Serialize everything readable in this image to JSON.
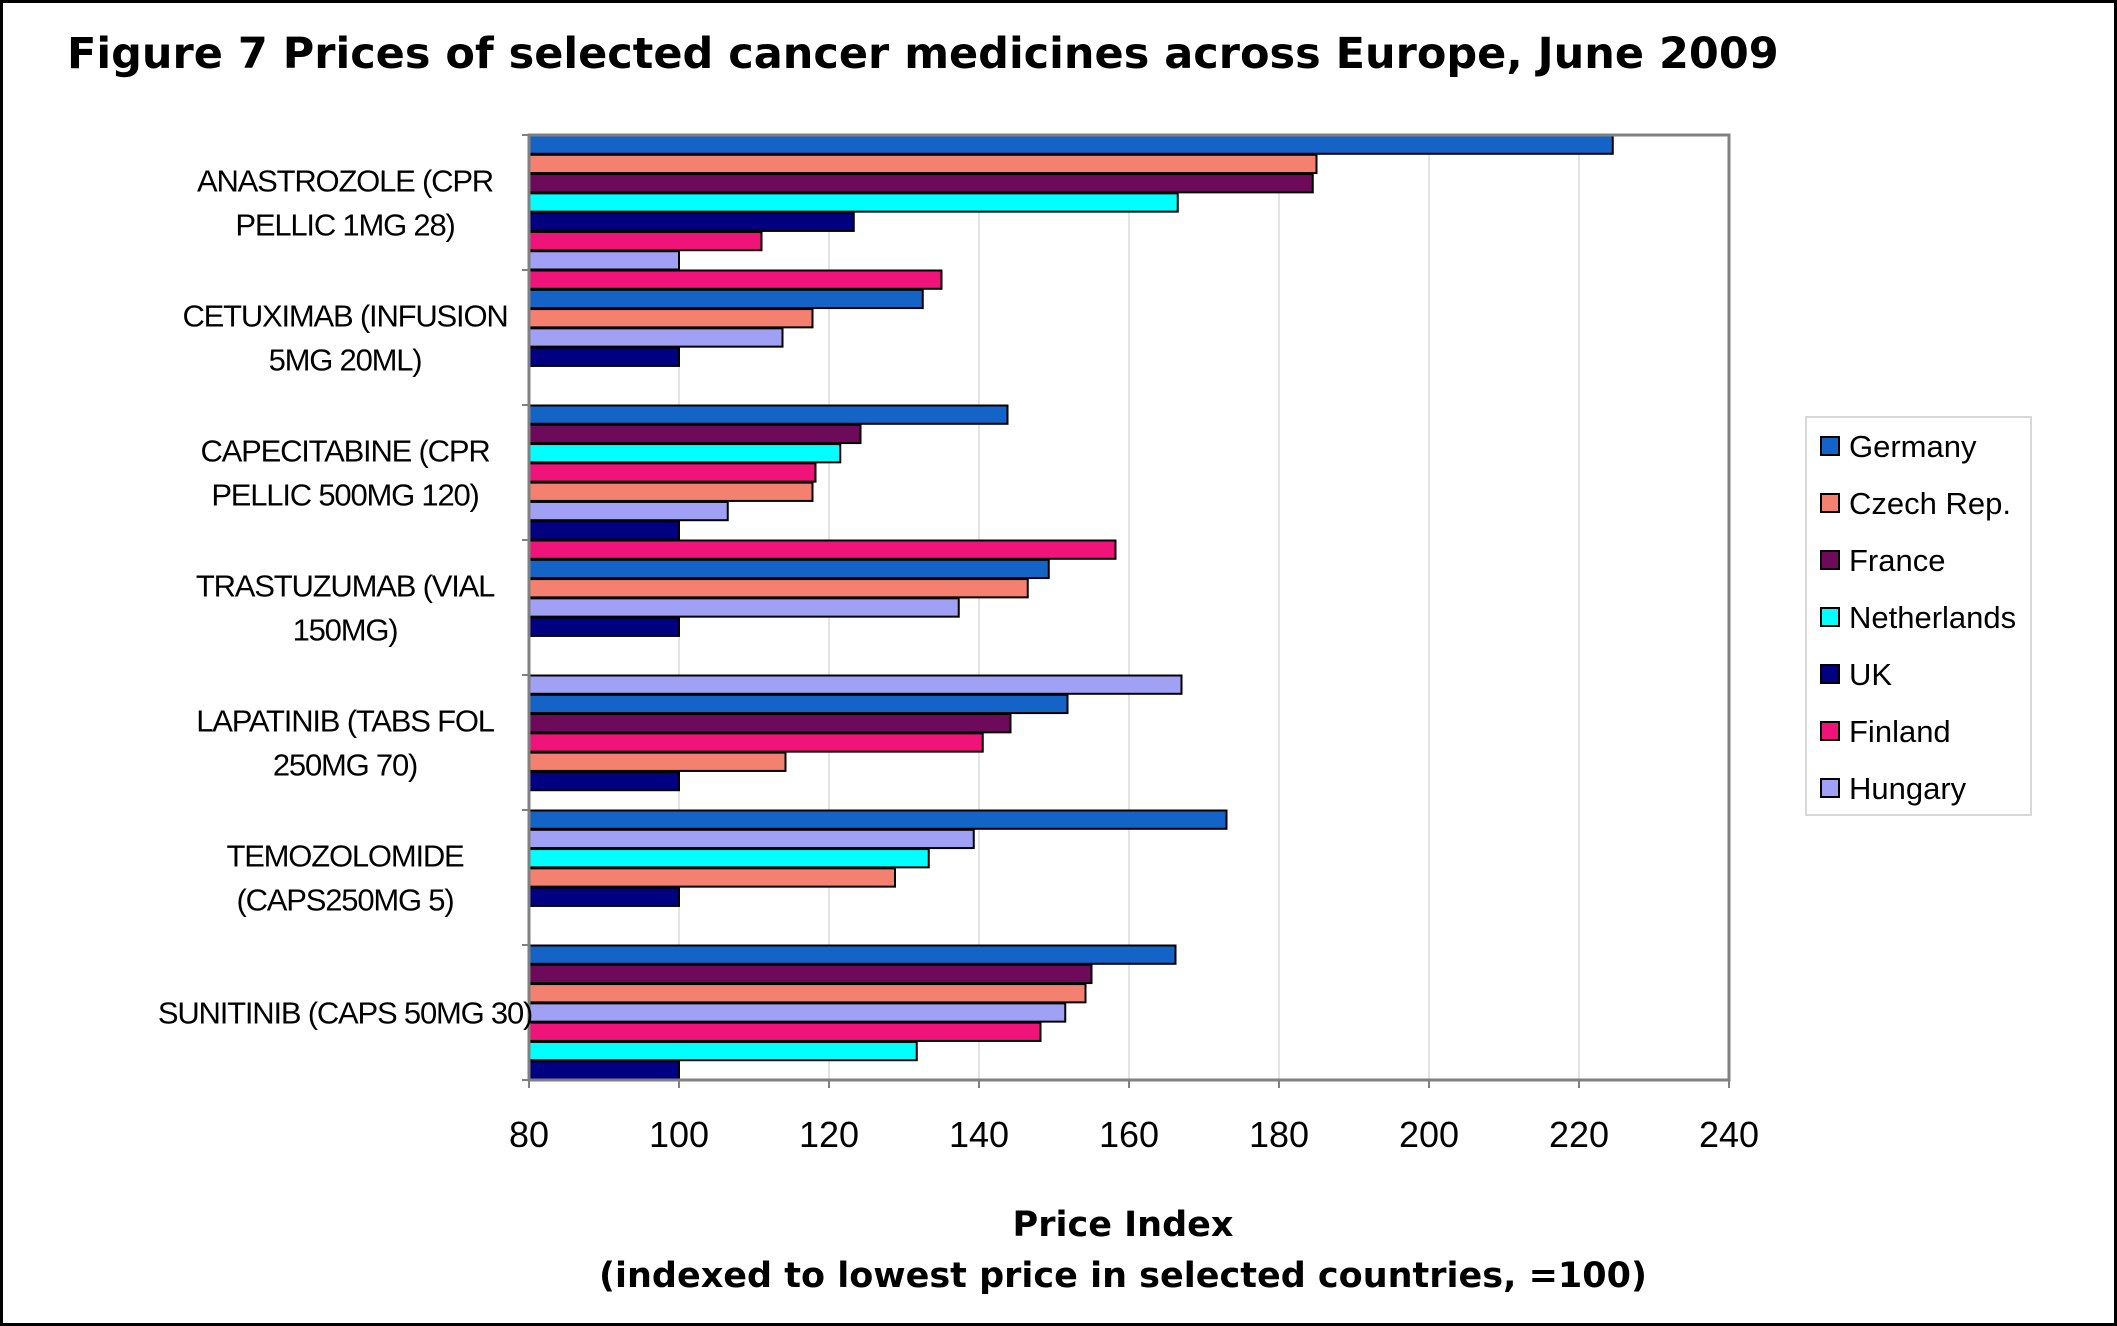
{
  "colors": {
    "Germany": "#1464c8",
    "Czech Rep.": "#f48070",
    "France": "#6e0a5a",
    "Netherlands": "#00ffff",
    "UK": "#000080",
    "Finland": "#f0147a",
    "Hungary": "#a0a0f4"
  },
  "chart_data": {
    "type": "bar",
    "orientation": "horizontal",
    "title": "Figure 7 Prices of selected cancer medicines across Europe, June 2009",
    "xlabel": "Price Index",
    "xlabel_sub": "(indexed to lowest price in selected countries, =100)",
    "ylabel": "",
    "xlim": [
      80,
      240
    ],
    "xticks": [
      80,
      100,
      120,
      140,
      160,
      180,
      200,
      220,
      240
    ],
    "grid": "vertical",
    "legend_position": "right",
    "legend": [
      "Germany",
      "Czech Rep.",
      "France",
      "Netherlands",
      "UK",
      "Finland",
      "Hungary"
    ],
    "categories": [
      {
        "label": [
          "ANASTROZOLE (CPR",
          "PELLIC 1MG 28)"
        ],
        "bars": [
          {
            "country": "Germany",
            "value": 224.5
          },
          {
            "country": "Czech Rep.",
            "value": 185
          },
          {
            "country": "France",
            "value": 184.5
          },
          {
            "country": "Netherlands",
            "value": 166.5
          },
          {
            "country": "UK",
            "value": 123.3
          },
          {
            "country": "Finland",
            "value": 111
          },
          {
            "country": "Hungary",
            "value": 100
          }
        ]
      },
      {
        "label": [
          "CETUXIMAB (INFUSION",
          "5MG 20ML)"
        ],
        "bars": [
          {
            "country": "Finland",
            "value": 135
          },
          {
            "country": "Germany",
            "value": 132.5
          },
          {
            "country": "Czech Rep.",
            "value": 117.8
          },
          {
            "country": "Hungary",
            "value": 113.8
          },
          {
            "country": "UK",
            "value": 100
          }
        ]
      },
      {
        "label": [
          "CAPECITABINE (CPR",
          "PELLIC 500MG 120)"
        ],
        "bars": [
          {
            "country": "Germany",
            "value": 143.8
          },
          {
            "country": "France",
            "value": 124.2
          },
          {
            "country": "Netherlands",
            "value": 121.5
          },
          {
            "country": "Finland",
            "value": 118.2
          },
          {
            "country": "Czech Rep.",
            "value": 117.8
          },
          {
            "country": "Hungary",
            "value": 106.5
          },
          {
            "country": "UK",
            "value": 100
          }
        ]
      },
      {
        "label": [
          "TRASTUZUMAB (VIAL",
          "150MG)"
        ],
        "bars": [
          {
            "country": "Finland",
            "value": 158.2
          },
          {
            "country": "Germany",
            "value": 149.3
          },
          {
            "country": "Czech Rep.",
            "value": 146.5
          },
          {
            "country": "Hungary",
            "value": 137.3
          },
          {
            "country": "UK",
            "value": 100
          }
        ]
      },
      {
        "label": [
          "LAPATINIB (TABS FOL",
          "250MG 70)"
        ],
        "bars": [
          {
            "country": "Hungary",
            "value": 167
          },
          {
            "country": "Germany",
            "value": 151.8
          },
          {
            "country": "France",
            "value": 144.2
          },
          {
            "country": "Finland",
            "value": 140.5
          },
          {
            "country": "Czech Rep.",
            "value": 114.2
          },
          {
            "country": "UK",
            "value": 100
          }
        ]
      },
      {
        "label": [
          "TEMOZOLOMIDE",
          "(CAPS250MG 5)"
        ],
        "bars": [
          {
            "country": "Germany",
            "value": 173
          },
          {
            "country": "Hungary",
            "value": 139.3
          },
          {
            "country": "Netherlands",
            "value": 133.3
          },
          {
            "country": "Czech Rep.",
            "value": 128.8
          },
          {
            "country": "UK",
            "value": 100
          }
        ]
      },
      {
        "label": [
          "SUNITINIB (CAPS 50MG 30)"
        ],
        "bars": [
          {
            "country": "Germany",
            "value": 166.2
          },
          {
            "country": "France",
            "value": 155
          },
          {
            "country": "Czech Rep.",
            "value": 154.2
          },
          {
            "country": "Hungary",
            "value": 151.5
          },
          {
            "country": "Finland",
            "value": 148.2
          },
          {
            "country": "Netherlands",
            "value": 131.7
          },
          {
            "country": "UK",
            "value": 100
          }
        ]
      }
    ]
  }
}
